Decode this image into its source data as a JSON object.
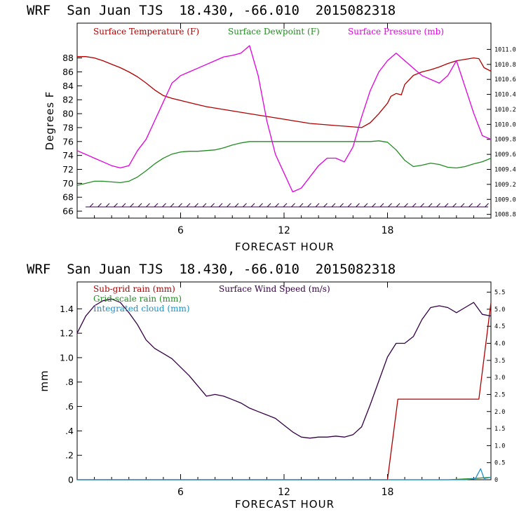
{
  "chart_data": [
    {
      "type": "line",
      "title": "WRF  San Juan TJS  18.430, -66.010  2015082318",
      "xlabel": "FORECAST HOUR",
      "ylabel": "Degrees F",
      "xlim": [
        0,
        24
      ],
      "ylim": [
        65,
        93
      ],
      "xticks": [
        "6",
        "12",
        "18"
      ],
      "yticks": [
        "66",
        "68",
        "70",
        "72",
        "74",
        "76",
        "78",
        "80",
        "82",
        "84",
        "86",
        "88"
      ],
      "y2lim": [
        1008.75,
        1011.35
      ],
      "y2ticks": [
        "1008.8",
        "1009.0",
        "1009.2",
        "1009.4",
        "1009.6",
        "1009.8",
        "1010.0",
        "1010.2",
        "1010.4",
        "1010.6",
        "1010.8",
        "1011.0"
      ],
      "grid": false,
      "legend_position": "top",
      "colors": {
        "temperature": "#b00000",
        "dewpoint": "#228b22",
        "pressure": "#e000e0",
        "wind_barbs": "#330044"
      },
      "series": [
        {
          "name": "Surface Temperature (F)",
          "axis": "left",
          "x": [
            0,
            0.5,
            1,
            1.5,
            2,
            2.5,
            3,
            3.5,
            4,
            4.5,
            5,
            5.5,
            6,
            6.5,
            7,
            7.5,
            8,
            8.5,
            9,
            9.5,
            10,
            10.5,
            11,
            11.5,
            12,
            12.5,
            13,
            13.5,
            14,
            14.5,
            15,
            15.5,
            16,
            16.5,
            17,
            17.5,
            18,
            18.2,
            18.5,
            18.8,
            19,
            19.5,
            20,
            20.5,
            21,
            21.5,
            22,
            22.5,
            23,
            23.3,
            23.6,
            24
          ],
          "values": [
            88.2,
            88.2,
            88.0,
            87.6,
            87.1,
            86.6,
            86.0,
            85.3,
            84.4,
            83.4,
            82.6,
            82.2,
            81.9,
            81.6,
            81.3,
            81.0,
            80.8,
            80.6,
            80.4,
            80.2,
            80.0,
            79.8,
            79.6,
            79.4,
            79.2,
            79.0,
            78.8,
            78.6,
            78.5,
            78.4,
            78.3,
            78.2,
            78.1,
            78.0,
            78.7,
            80.0,
            81.5,
            82.5,
            82.9,
            82.7,
            84.2,
            85.5,
            86.0,
            86.3,
            86.7,
            87.2,
            87.6,
            87.8,
            88.0,
            87.9,
            86.6,
            86.1
          ]
        },
        {
          "name": "Surface Dewpoint (F)",
          "axis": "left",
          "x": [
            0,
            0.5,
            1,
            1.5,
            2,
            2.5,
            3,
            3.5,
            4,
            4.5,
            5,
            5.5,
            6,
            6.5,
            7,
            7.5,
            8,
            8.5,
            9,
            9.5,
            10,
            10.5,
            11,
            11.5,
            12,
            12.5,
            13,
            13.5,
            14,
            14.5,
            15,
            15.5,
            16,
            16.5,
            17,
            17.5,
            18,
            18.5,
            19,
            19.5,
            20,
            20.5,
            21,
            21.5,
            22,
            22.5,
            23,
            23.5,
            24
          ],
          "values": [
            69.7,
            70.0,
            70.3,
            70.3,
            70.2,
            70.1,
            70.3,
            70.9,
            71.8,
            72.8,
            73.6,
            74.2,
            74.5,
            74.6,
            74.6,
            74.7,
            74.8,
            75.1,
            75.5,
            75.8,
            76.0,
            76.0,
            76.0,
            76.0,
            76.0,
            76.0,
            76.0,
            76.0,
            76.0,
            76.0,
            76.0,
            76.0,
            76.0,
            76.0,
            76.0,
            76.1,
            75.9,
            74.8,
            73.3,
            72.4,
            72.6,
            72.9,
            72.7,
            72.3,
            72.2,
            72.4,
            72.8,
            73.1,
            73.6
          ]
        },
        {
          "name": "Surface Pressure (mb)",
          "axis": "right",
          "x": [
            0,
            0.5,
            1,
            1.5,
            2,
            2.5,
            3,
            3.5,
            4,
            4.5,
            5,
            5.5,
            6,
            6.5,
            7,
            7.5,
            8,
            8.5,
            9,
            9.5,
            10,
            10.5,
            11,
            11.5,
            12,
            12.5,
            13,
            13.5,
            14,
            14.5,
            15,
            15.5,
            16,
            16.5,
            17,
            17.5,
            18,
            18.5,
            19,
            19.5,
            20,
            20.5,
            21,
            21.5,
            22,
            22.5,
            23,
            23.5,
            24
          ],
          "values": [
            1009.65,
            1009.6,
            1009.55,
            1009.5,
            1009.45,
            1009.42,
            1009.45,
            1009.65,
            1009.8,
            1010.05,
            1010.3,
            1010.55,
            1010.65,
            1010.7,
            1010.75,
            1010.8,
            1010.85,
            1010.9,
            1010.92,
            1010.95,
            1011.05,
            1010.65,
            1010.05,
            1009.6,
            1009.35,
            1009.1,
            1009.15,
            1009.3,
            1009.45,
            1009.55,
            1009.55,
            1009.5,
            1009.7,
            1010.1,
            1010.45,
            1010.7,
            1010.85,
            1010.95,
            1010.85,
            1010.75,
            1010.65,
            1010.6,
            1010.55,
            1010.65,
            1010.85,
            1010.5,
            1010.15,
            1009.85,
            1009.8
          ]
        }
      ]
    },
    {
      "type": "line",
      "title": "WRF  San Juan TJS  18.430, -66.010  2015082318",
      "xlabel": "FORECAST HOUR",
      "ylabel": "mm",
      "xlim": [
        0,
        24
      ],
      "ylim": [
        0,
        1.62
      ],
      "xticks": [
        "6",
        "12",
        "18"
      ],
      "yticks": [
        "0",
        ".2",
        ".4",
        ".6",
        ".8",
        "1.0",
        "1.2",
        "1.4"
      ],
      "y2lim": [
        0,
        5.8
      ],
      "y2ticks": [
        "0",
        "0.5",
        "1.0",
        "1.5",
        "2.0",
        "2.5",
        "3.0",
        "3.5",
        "4.0",
        "4.5",
        "5.0",
        "5.5"
      ],
      "grid": false,
      "legend_position": "top-left",
      "colors": {
        "subgrid": "#b00000",
        "gridscale": "#228b22",
        "cloud": "#1e90c8",
        "wind": "#330044"
      },
      "series": [
        {
          "name": "Sub-grid rain (mm)",
          "axis": "left",
          "x": [
            0,
            18,
            18.6,
            23.3,
            24
          ],
          "values": [
            0,
            0,
            0.66,
            0.66,
            1.45
          ]
        },
        {
          "name": "Grid-scale rain (mm)",
          "axis": "left",
          "x": [
            0,
            21.5,
            23,
            24
          ],
          "values": [
            0,
            0,
            0.01,
            0.02
          ]
        },
        {
          "name": "Integrated cloud (mm)",
          "axis": "left",
          "x": [
            0,
            22.5,
            23.1,
            23.4,
            23.6,
            24
          ],
          "values": [
            0,
            0,
            0.01,
            0.09,
            0.01,
            0.02
          ]
        },
        {
          "name": "Surface Wind Speed (m/s)",
          "axis": "right",
          "x": [
            0,
            0.5,
            1,
            1.5,
            2,
            2.5,
            3,
            3.5,
            4,
            4.5,
            5,
            5.5,
            6,
            6.5,
            7,
            7.5,
            8,
            8.5,
            9,
            9.5,
            10,
            10.5,
            11,
            11.5,
            12,
            12.5,
            13,
            13.5,
            14,
            14.5,
            15,
            15.5,
            16,
            16.5,
            17,
            17.5,
            18,
            18.5,
            19,
            19.5,
            20,
            20.5,
            21,
            21.5,
            22,
            22.5,
            23,
            23.5,
            24
          ],
          "values": [
            4.3,
            4.8,
            5.1,
            5.25,
            5.3,
            5.2,
            4.9,
            4.55,
            4.1,
            3.85,
            3.7,
            3.55,
            3.3,
            3.05,
            2.75,
            2.45,
            2.5,
            2.45,
            2.35,
            2.25,
            2.1,
            2.0,
            1.9,
            1.8,
            1.6,
            1.4,
            1.25,
            1.22,
            1.25,
            1.25,
            1.28,
            1.25,
            1.32,
            1.55,
            2.2,
            2.9,
            3.6,
            4.0,
            4.0,
            4.2,
            4.7,
            5.05,
            5.1,
            5.05,
            4.9,
            5.05,
            5.2,
            4.85,
            4.8
          ]
        }
      ]
    }
  ]
}
